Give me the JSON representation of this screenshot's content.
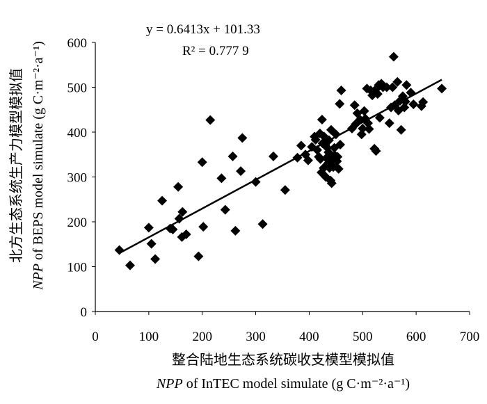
{
  "chart_data": {
    "type": "scatter",
    "xlabel_cn": "整合陆地生态系统碳收支模型模拟值",
    "xlabel_en_italic": "NPP",
    "xlabel_en": " of InTEC model simulate (g C·m⁻²·a⁻¹)",
    "ylabel_cn": "北方生态系统生产力模型模拟值",
    "ylabel_en_italic": "NPP",
    "ylabel_en": " of BEPS model simulate (g C·m⁻²·a⁻¹)",
    "xlim": [
      0,
      700
    ],
    "ylim": [
      0,
      600
    ],
    "xticks": [
      0,
      100,
      200,
      300,
      400,
      500,
      600,
      700
    ],
    "yticks": [
      0,
      100,
      200,
      300,
      400,
      500,
      600
    ],
    "grid": false,
    "fit": {
      "equation": "y = 0.6413x  + 101.33",
      "r2": "R² = 0.777 9",
      "slope": 0.6413,
      "intercept": 101.33,
      "x_range": [
        45,
        648
      ]
    },
    "points": [
      [
        45,
        137
      ],
      [
        65,
        103
      ],
      [
        100,
        187
      ],
      [
        105,
        151
      ],
      [
        112,
        117
      ],
      [
        125,
        247
      ],
      [
        140,
        185
      ],
      [
        145,
        183
      ],
      [
        155,
        278
      ],
      [
        157,
        207
      ],
      [
        162,
        166
      ],
      [
        163,
        222
      ],
      [
        170,
        172
      ],
      [
        193,
        123
      ],
      [
        200,
        333
      ],
      [
        202,
        189
      ],
      [
        215,
        427
      ],
      [
        236,
        297
      ],
      [
        243,
        227
      ],
      [
        257,
        346
      ],
      [
        262,
        180
      ],
      [
        272,
        313
      ],
      [
        275,
        387
      ],
      [
        300,
        289
      ],
      [
        313,
        195
      ],
      [
        333,
        346
      ],
      [
        355,
        271
      ],
      [
        378,
        343
      ],
      [
        385,
        370
      ],
      [
        393,
        350
      ],
      [
        398,
        337
      ],
      [
        405,
        367
      ],
      [
        410,
        390
      ],
      [
        412,
        383
      ],
      [
        415,
        360
      ],
      [
        418,
        345
      ],
      [
        420,
        397
      ],
      [
        421,
        340
      ],
      [
        423,
        310
      ],
      [
        424,
        428
      ],
      [
        425,
        375
      ],
      [
        427,
        320
      ],
      [
        428,
        390
      ],
      [
        430,
        372
      ],
      [
        431,
        300
      ],
      [
        432,
        342
      ],
      [
        434,
        365
      ],
      [
        435,
        330
      ],
      [
        436,
        355
      ],
      [
        437,
        382
      ],
      [
        438,
        320
      ],
      [
        439,
        350
      ],
      [
        440,
        292
      ],
      [
        441,
        405
      ],
      [
        442,
        286
      ],
      [
        444,
        338
      ],
      [
        445,
        322
      ],
      [
        447,
        365
      ],
      [
        448,
        348
      ],
      [
        450,
        395
      ],
      [
        452,
        335
      ],
      [
        453,
        345
      ],
      [
        455,
        318
      ],
      [
        457,
        463
      ],
      [
        458,
        372
      ],
      [
        460,
        493
      ],
      [
        480,
        408
      ],
      [
        485,
        460
      ],
      [
        487,
        418
      ],
      [
        490,
        442
      ],
      [
        495,
        428
      ],
      [
        498,
        395
      ],
      [
        500,
        408
      ],
      [
        503,
        447
      ],
      [
        505,
        430
      ],
      [
        508,
        497
      ],
      [
        510,
        420
      ],
      [
        512,
        407
      ],
      [
        515,
        493
      ],
      [
        518,
        482
      ],
      [
        520,
        487
      ],
      [
        522,
        363
      ],
      [
        525,
        358
      ],
      [
        527,
        498
      ],
      [
        528,
        485
      ],
      [
        530,
        505
      ],
      [
        532,
        432
      ],
      [
        535,
        508
      ],
      [
        538,
        500
      ],
      [
        545,
        500
      ],
      [
        550,
        420
      ],
      [
        553,
        455
      ],
      [
        556,
        500
      ],
      [
        558,
        568
      ],
      [
        560,
        460
      ],
      [
        565,
        512
      ],
      [
        567,
        448
      ],
      [
        570,
        470
      ],
      [
        572,
        405
      ],
      [
        575,
        480
      ],
      [
        578,
        455
      ],
      [
        580,
        468
      ],
      [
        582,
        505
      ],
      [
        590,
        488
      ],
      [
        595,
        462
      ],
      [
        610,
        458
      ],
      [
        613,
        467
      ],
      [
        648,
        497
      ]
    ]
  }
}
